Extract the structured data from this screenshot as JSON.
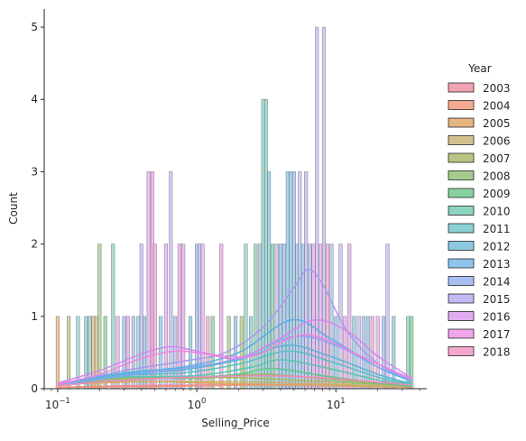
{
  "chart_data": {
    "type": "histogram",
    "xlabel": "Selling_Price",
    "ylabel": "Count",
    "xscale": "log",
    "xlim": [
      0.08,
      45
    ],
    "ylim": [
      0,
      5.25
    ],
    "x_ticks": [
      {
        "value": 0.1,
        "base": "10",
        "exp": "−1"
      },
      {
        "value": 1,
        "base": "10",
        "exp": "0"
      },
      {
        "value": 10,
        "base": "10",
        "exp": "1"
      }
    ],
    "y_ticks": [
      "0",
      "1",
      "2",
      "3",
      "4",
      "5"
    ],
    "legend": {
      "title": "Year",
      "placement": "right",
      "entries": [
        {
          "label": "2003",
          "color": "#f2a3b4"
        },
        {
          "label": "2004",
          "color": "#f4a992"
        },
        {
          "label": "2005",
          "color": "#e4b583"
        },
        {
          "label": "2006",
          "color": "#d2c290"
        },
        {
          "label": "2007",
          "color": "#b9c583"
        },
        {
          "label": "2008",
          "color": "#a3cc8c"
        },
        {
          "label": "2009",
          "color": "#86d2a2"
        },
        {
          "label": "2010",
          "color": "#8dd3c0"
        },
        {
          "label": "2011",
          "color": "#8bd1d2"
        },
        {
          "label": "2012",
          "color": "#8ac9df"
        },
        {
          "label": "2013",
          "color": "#8cc5ec"
        },
        {
          "label": "2014",
          "color": "#a7bff3"
        },
        {
          "label": "2015",
          "color": "#c5b9f4"
        },
        {
          "label": "2016",
          "color": "#e1acf2"
        },
        {
          "label": "2017",
          "color": "#f2a4ea"
        },
        {
          "label": "2018",
          "color": "#f5a7cd"
        }
      ]
    },
    "bars": [
      {
        "x": 0.1,
        "count": 1,
        "color": "#e4b583"
      },
      {
        "x": 0.12,
        "count": 1,
        "color": "#b9c583"
      },
      {
        "x": 0.14,
        "count": 1,
        "color": "#8bd1d2"
      },
      {
        "x": 0.16,
        "count": 1,
        "color": "#8ac9df"
      },
      {
        "x": 0.17,
        "count": 1,
        "color": "#8dd3c0"
      },
      {
        "x": 0.18,
        "count": 1,
        "color": "#e4b583"
      },
      {
        "x": 0.19,
        "count": 1,
        "color": "#d2c290"
      },
      {
        "x": 0.2,
        "count": 2,
        "color": "#a3cc8c"
      },
      {
        "x": 0.22,
        "count": 1,
        "color": "#86d2a2"
      },
      {
        "x": 0.25,
        "count": 2,
        "color": "#8dd3c0"
      },
      {
        "x": 0.27,
        "count": 1,
        "color": "#e1acf2"
      },
      {
        "x": 0.3,
        "count": 1,
        "color": "#8cc5ec"
      },
      {
        "x": 0.32,
        "count": 1,
        "color": "#f2a4ea"
      },
      {
        "x": 0.35,
        "count": 1,
        "color": "#a7bff3"
      },
      {
        "x": 0.38,
        "count": 1,
        "color": "#8bd1d2"
      },
      {
        "x": 0.4,
        "count": 2,
        "color": "#c5b9f4"
      },
      {
        "x": 0.42,
        "count": 1,
        "color": "#8ac9df"
      },
      {
        "x": 0.45,
        "count": 3,
        "color": "#e1acf2"
      },
      {
        "x": 0.48,
        "count": 3,
        "color": "#f2a4ea"
      },
      {
        "x": 0.5,
        "count": 2,
        "color": "#f5a7cd"
      },
      {
        "x": 0.55,
        "count": 1,
        "color": "#8cc5ec"
      },
      {
        "x": 0.6,
        "count": 2,
        "color": "#e1acf2"
      },
      {
        "x": 0.65,
        "count": 3,
        "color": "#c5b9f4"
      },
      {
        "x": 0.7,
        "count": 1,
        "color": "#a7bff3"
      },
      {
        "x": 0.75,
        "count": 2,
        "color": "#f2a4ea"
      },
      {
        "x": 0.8,
        "count": 2,
        "color": "#e1acf2"
      },
      {
        "x": 0.9,
        "count": 1,
        "color": "#8ac9df"
      },
      {
        "x": 1.0,
        "count": 2,
        "color": "#a7bff3"
      },
      {
        "x": 1.05,
        "count": 2,
        "color": "#c5b9f4"
      },
      {
        "x": 1.1,
        "count": 2,
        "color": "#e1acf2"
      },
      {
        "x": 1.2,
        "count": 1,
        "color": "#f5a7cd"
      },
      {
        "x": 1.3,
        "count": 1,
        "color": "#86d2a2"
      },
      {
        "x": 1.5,
        "count": 2,
        "color": "#f2a4ea"
      },
      {
        "x": 1.7,
        "count": 1,
        "color": "#a3cc8c"
      },
      {
        "x": 1.9,
        "count": 1,
        "color": "#8cc5ec"
      },
      {
        "x": 2.1,
        "count": 1,
        "color": "#b9c583"
      },
      {
        "x": 2.25,
        "count": 2,
        "color": "#8dd3c0"
      },
      {
        "x": 2.45,
        "count": 1,
        "color": "#8ac9df"
      },
      {
        "x": 2.65,
        "count": 2,
        "color": "#86d2a2"
      },
      {
        "x": 2.85,
        "count": 2,
        "color": "#a7bff3"
      },
      {
        "x": 3.0,
        "count": 4,
        "color": "#8dd3c0"
      },
      {
        "x": 3.15,
        "count": 4,
        "color": "#8bd1d2"
      },
      {
        "x": 3.3,
        "count": 3,
        "color": "#8ac9df"
      },
      {
        "x": 3.5,
        "count": 2,
        "color": "#86d2a2"
      },
      {
        "x": 3.75,
        "count": 2,
        "color": "#c5b9f4"
      },
      {
        "x": 4.0,
        "count": 2,
        "color": "#8cc5ec"
      },
      {
        "x": 4.25,
        "count": 2,
        "color": "#a7bff3"
      },
      {
        "x": 4.5,
        "count": 3,
        "color": "#8cc5ec"
      },
      {
        "x": 4.75,
        "count": 3,
        "color": "#8ac9df"
      },
      {
        "x": 5.0,
        "count": 3,
        "color": "#a7bff3"
      },
      {
        "x": 5.25,
        "count": 2,
        "color": "#8bd1d2"
      },
      {
        "x": 5.5,
        "count": 3,
        "color": "#c5b9f4"
      },
      {
        "x": 5.8,
        "count": 2,
        "color": "#8cc5ec"
      },
      {
        "x": 6.1,
        "count": 3,
        "color": "#c5b9f4"
      },
      {
        "x": 6.5,
        "count": 2,
        "color": "#a7bff3"
      },
      {
        "x": 6.9,
        "count": 2,
        "color": "#f2a4ea"
      },
      {
        "x": 7.3,
        "count": 5,
        "color": "#c5b9f4"
      },
      {
        "x": 7.75,
        "count": 2,
        "color": "#e1acf2"
      },
      {
        "x": 8.2,
        "count": 5,
        "color": "#c5b9f4"
      },
      {
        "x": 8.7,
        "count": 2,
        "color": "#f5a7cd"
      },
      {
        "x": 9.3,
        "count": 2,
        "color": "#a7bff3"
      },
      {
        "x": 10.0,
        "count": 1,
        "color": "#8cc5ec"
      },
      {
        "x": 10.8,
        "count": 2,
        "color": "#c5b9f4"
      },
      {
        "x": 11.6,
        "count": 1,
        "color": "#f2a4ea"
      },
      {
        "x": 12.5,
        "count": 2,
        "color": "#e1acf2"
      },
      {
        "x": 13.5,
        "count": 1,
        "color": "#8ac9df"
      },
      {
        "x": 14.6,
        "count": 1,
        "color": "#c5b9f4"
      },
      {
        "x": 15.8,
        "count": 1,
        "color": "#a7bff3"
      },
      {
        "x": 17.0,
        "count": 1,
        "color": "#8cc5ec"
      },
      {
        "x": 18.3,
        "count": 1,
        "color": "#f5a7cd"
      },
      {
        "x": 20.0,
        "count": 1,
        "color": "#e1acf2"
      },
      {
        "x": 22.0,
        "count": 1,
        "color": "#a7bff3"
      },
      {
        "x": 23.5,
        "count": 2,
        "color": "#c5b9f4"
      },
      {
        "x": 26.0,
        "count": 1,
        "color": "#8ac9df"
      },
      {
        "x": 33.0,
        "count": 1,
        "color": "#8dd3c0"
      },
      {
        "x": 35.0,
        "count": 1,
        "color": "#86d2a2"
      }
    ],
    "series": [
      {
        "year": "2003",
        "color": "#ef89a0",
        "points": [
          [
            0.1,
            0.02
          ],
          [
            0.3,
            0.04
          ],
          [
            1,
            0.05
          ],
          [
            3,
            0.05
          ],
          [
            10,
            0.04
          ],
          [
            35,
            0.02
          ]
        ]
      },
      {
        "year": "2004",
        "color": "#f29474",
        "points": [
          [
            0.1,
            0.02
          ],
          [
            0.5,
            0.03
          ],
          [
            2,
            0.05
          ],
          [
            6,
            0.05
          ],
          [
            20,
            0.03
          ],
          [
            35,
            0.02
          ]
        ]
      },
      {
        "year": "2005",
        "color": "#dea361",
        "points": [
          [
            0.1,
            0.06
          ],
          [
            0.2,
            0.08
          ],
          [
            0.5,
            0.1
          ],
          [
            1,
            0.08
          ],
          [
            3,
            0.06
          ],
          [
            10,
            0.04
          ],
          [
            35,
            0.02
          ]
        ]
      },
      {
        "year": "2006",
        "color": "#c7b36d",
        "points": [
          [
            0.1,
            0.06
          ],
          [
            0.3,
            0.1
          ],
          [
            1,
            0.1
          ],
          [
            3,
            0.09
          ],
          [
            10,
            0.06
          ],
          [
            35,
            0.03
          ]
        ]
      },
      {
        "year": "2007",
        "color": "#a8b85e",
        "points": [
          [
            0.1,
            0.08
          ],
          [
            0.3,
            0.14
          ],
          [
            1,
            0.16
          ],
          [
            3,
            0.14
          ],
          [
            10,
            0.09
          ],
          [
            35,
            0.04
          ]
        ]
      },
      {
        "year": "2008",
        "color": "#88c06d",
        "points": [
          [
            0.1,
            0.08
          ],
          [
            0.3,
            0.15
          ],
          [
            1,
            0.14
          ],
          [
            3,
            0.2
          ],
          [
            10,
            0.12
          ],
          [
            35,
            0.04
          ]
        ]
      },
      {
        "year": "2009",
        "color": "#5ec888",
        "points": [
          [
            0.1,
            0.06
          ],
          [
            0.3,
            0.12
          ],
          [
            1,
            0.16
          ],
          [
            2,
            0.2
          ],
          [
            3.5,
            0.28
          ],
          [
            8,
            0.18
          ],
          [
            20,
            0.08
          ],
          [
            35,
            0.03
          ]
        ]
      },
      {
        "year": "2010",
        "color": "#5ec5ac",
        "points": [
          [
            0.1,
            0.08
          ],
          [
            0.3,
            0.16
          ],
          [
            1,
            0.18
          ],
          [
            2.5,
            0.3
          ],
          [
            4,
            0.4
          ],
          [
            8,
            0.3
          ],
          [
            20,
            0.12
          ],
          [
            35,
            0.05
          ]
        ]
      },
      {
        "year": "2011",
        "color": "#5bc0c4",
        "points": [
          [
            0.1,
            0.06
          ],
          [
            0.3,
            0.18
          ],
          [
            0.8,
            0.22
          ],
          [
            2,
            0.34
          ],
          [
            4.5,
            0.52
          ],
          [
            9,
            0.38
          ],
          [
            20,
            0.16
          ],
          [
            35,
            0.06
          ]
        ]
      },
      {
        "year": "2012",
        "color": "#5ab5d6",
        "points": [
          [
            0.1,
            0.06
          ],
          [
            0.3,
            0.2
          ],
          [
            0.8,
            0.26
          ],
          [
            2,
            0.4
          ],
          [
            4.5,
            0.6
          ],
          [
            9,
            0.45
          ],
          [
            20,
            0.2
          ],
          [
            35,
            0.07
          ]
        ]
      },
      {
        "year": "2013",
        "color": "#5bafe6",
        "points": [
          [
            0.1,
            0.06
          ],
          [
            0.3,
            0.22
          ],
          [
            0.8,
            0.3
          ],
          [
            2,
            0.5
          ],
          [
            4.8,
            0.95
          ],
          [
            9,
            0.7
          ],
          [
            20,
            0.3
          ],
          [
            35,
            0.1
          ]
        ]
      },
      {
        "year": "2014",
        "color": "#85a6ee",
        "points": [
          [
            0.1,
            0.05
          ],
          [
            0.3,
            0.18
          ],
          [
            0.8,
            0.28
          ],
          [
            2,
            0.42
          ],
          [
            5,
            0.72
          ],
          [
            10,
            0.6
          ],
          [
            20,
            0.3
          ],
          [
            35,
            0.12
          ]
        ]
      },
      {
        "year": "2015",
        "color": "#a99cf0",
        "points": [
          [
            0.1,
            0.06
          ],
          [
            0.3,
            0.25
          ],
          [
            0.8,
            0.38
          ],
          [
            1.6,
            0.5
          ],
          [
            3,
            0.85
          ],
          [
            5,
            1.4
          ],
          [
            6.3,
            1.65
          ],
          [
            8,
            1.45
          ],
          [
            12,
            0.8
          ],
          [
            20,
            0.35
          ],
          [
            35,
            0.12
          ]
        ]
      },
      {
        "year": "2016",
        "color": "#d38aee",
        "points": [
          [
            0.1,
            0.08
          ],
          [
            0.2,
            0.25
          ],
          [
            0.4,
            0.48
          ],
          [
            0.65,
            0.58
          ],
          [
            1,
            0.52
          ],
          [
            2,
            0.42
          ],
          [
            4,
            0.7
          ],
          [
            7,
            0.95
          ],
          [
            12,
            0.8
          ],
          [
            20,
            0.45
          ],
          [
            35,
            0.15
          ]
        ]
      },
      {
        "year": "2017",
        "color": "#ed86e1",
        "points": [
          [
            0.1,
            0.06
          ],
          [
            0.2,
            0.2
          ],
          [
            0.4,
            0.42
          ],
          [
            0.7,
            0.52
          ],
          [
            1.2,
            0.48
          ],
          [
            2.5,
            0.45
          ],
          [
            5,
            0.72
          ],
          [
            8,
            0.7
          ],
          [
            15,
            0.45
          ],
          [
            35,
            0.14
          ]
        ]
      },
      {
        "year": "2018",
        "color": "#f289bc",
        "points": [
          [
            0.1,
            0.04
          ],
          [
            0.3,
            0.12
          ],
          [
            1,
            0.16
          ],
          [
            3,
            0.18
          ],
          [
            8,
            0.15
          ],
          [
            35,
            0.05
          ]
        ]
      }
    ]
  }
}
